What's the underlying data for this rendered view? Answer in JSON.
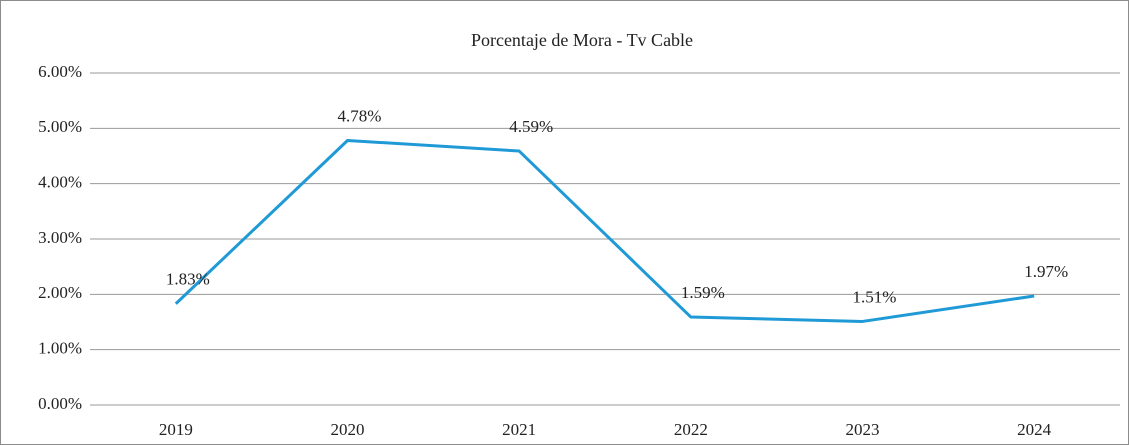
{
  "chart_data": {
    "type": "line",
    "title": "Porcentaje de Mora -   Tv Cable",
    "categories": [
      "2019",
      "2020",
      "2021",
      "2022",
      "2023",
      "2024"
    ],
    "series": [
      {
        "name": "Porcentaje de Mora",
        "color": "#1f9ad6",
        "values": [
          1.83,
          4.78,
          4.59,
          1.59,
          1.51,
          1.97
        ],
        "value_labels": [
          "1.83%",
          "4.78%",
          "4.59%",
          "1.59%",
          "1.51%",
          "1.97%"
        ]
      }
    ],
    "ylim": [
      0,
      6
    ],
    "yticks": [
      {
        "value": 0,
        "label": "0.00%"
      },
      {
        "value": 1,
        "label": "1.00%"
      },
      {
        "value": 2,
        "label": "2.00%"
      },
      {
        "value": 3,
        "label": "3.00%"
      },
      {
        "value": 4,
        "label": "4.00%"
      },
      {
        "value": 5,
        "label": "5.00%"
      },
      {
        "value": 6,
        "label": "6.00%"
      }
    ],
    "grid": true
  }
}
